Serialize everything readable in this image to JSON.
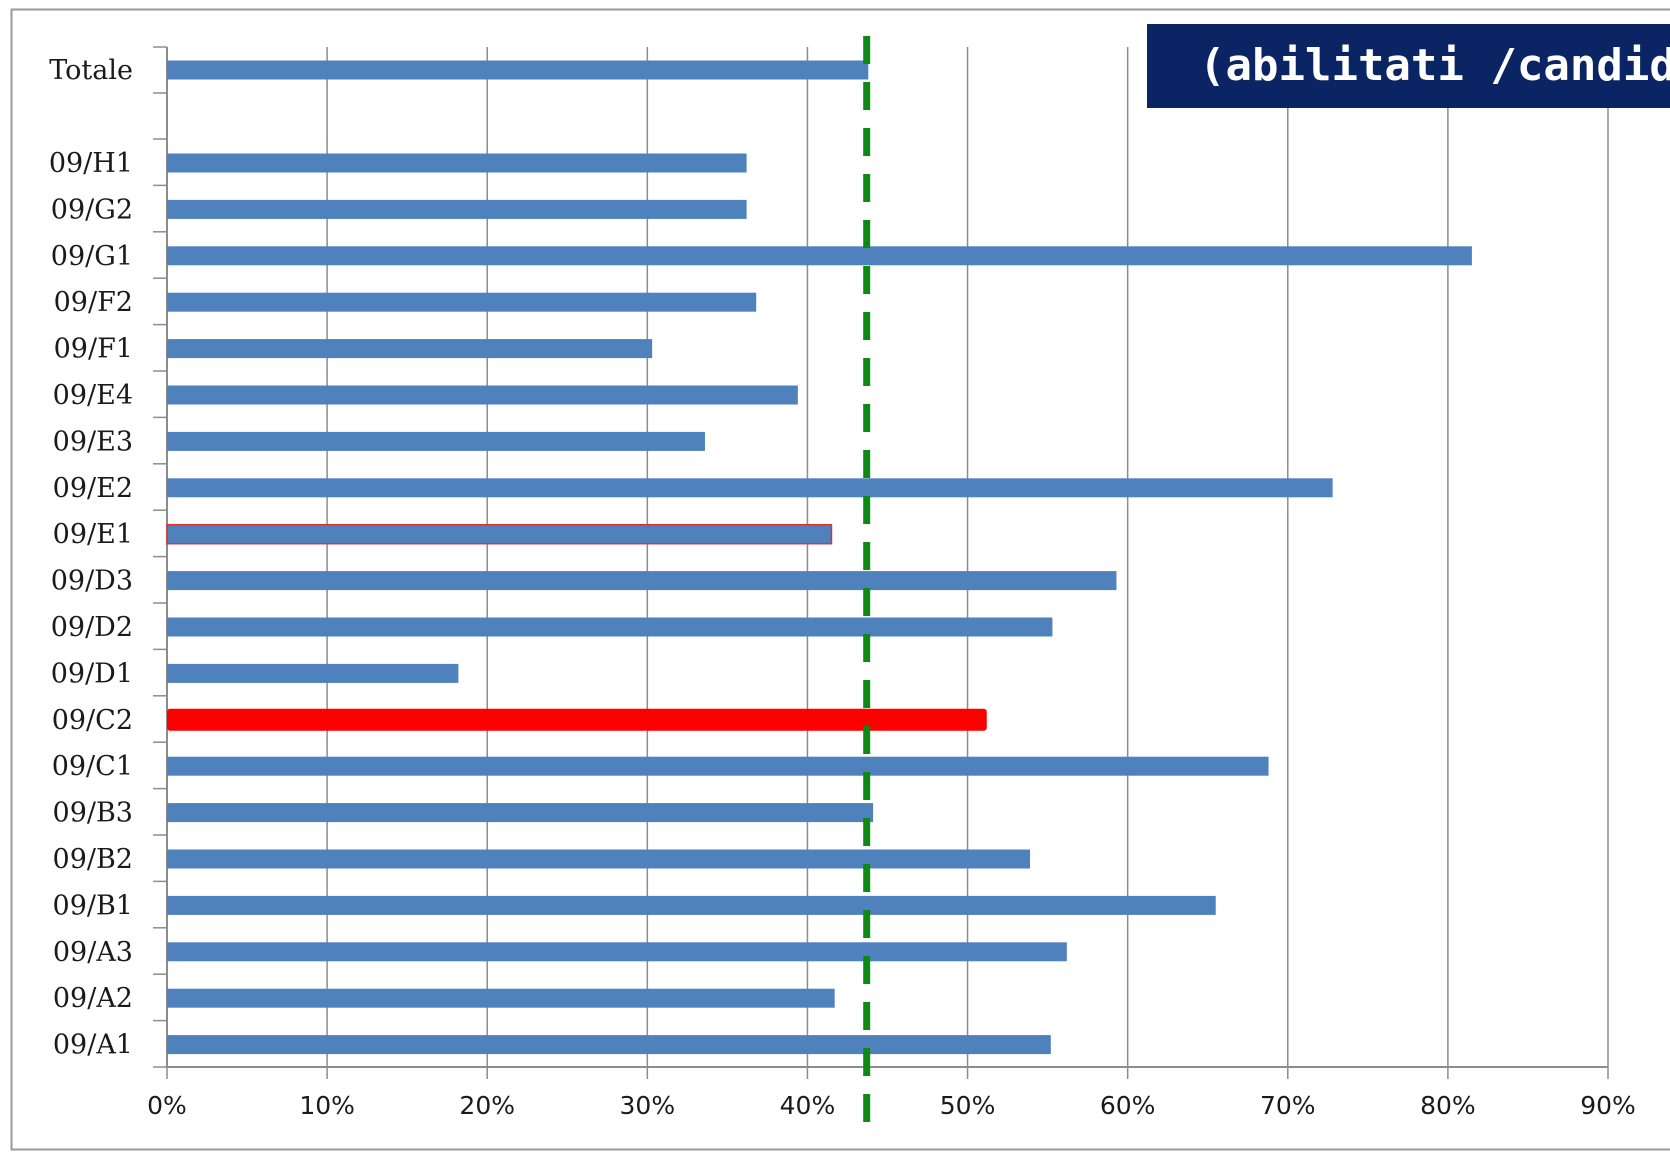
{
  "chart_data": {
    "type": "bar",
    "orientation": "horizontal",
    "title": "(abilitati /candidati)",
    "categories": [
      "Totale",
      "09/H1",
      "09/G2",
      "09/G1",
      "09/F2",
      "09/F1",
      "09/E4",
      "09/E3",
      "09/E2",
      "09/E1",
      "09/D3",
      "09/D2",
      "09/D1",
      "09/C2",
      "09/C1",
      "09/B3",
      "09/B2",
      "09/B1",
      "09/A3",
      "09/A2",
      "09/A1"
    ],
    "values": [
      43.8,
      36.2,
      36.2,
      81.5,
      36.8,
      30.3,
      39.4,
      33.6,
      72.8,
      41.5,
      59.3,
      55.3,
      18.2,
      51.2,
      68.8,
      44.1,
      53.9,
      65.5,
      56.2,
      41.7,
      55.2
    ],
    "highlight": {
      "category": "09/C2",
      "color": "#ff0000"
    },
    "outlined": {
      "category": "09/E1",
      "outline_color": "#e03030"
    },
    "reference_line": {
      "value": 43.7,
      "color": "#0e8a14",
      "style": "dashed"
    },
    "xlim": [
      0,
      90
    ],
    "xticks": [
      "0%",
      "10%",
      "20%",
      "30%",
      "40%",
      "50%",
      "60%",
      "70%",
      "80%",
      "90%"
    ],
    "xlabel": "",
    "ylabel": "",
    "grid": "vertical",
    "colors": {
      "bar": "#4f81bd",
      "highlight": "#ff0000",
      "grid": "#8c8c8c",
      "axis": "#8c8c8c",
      "title_background": "#0b2463",
      "title_text": "#ffffff"
    }
  }
}
